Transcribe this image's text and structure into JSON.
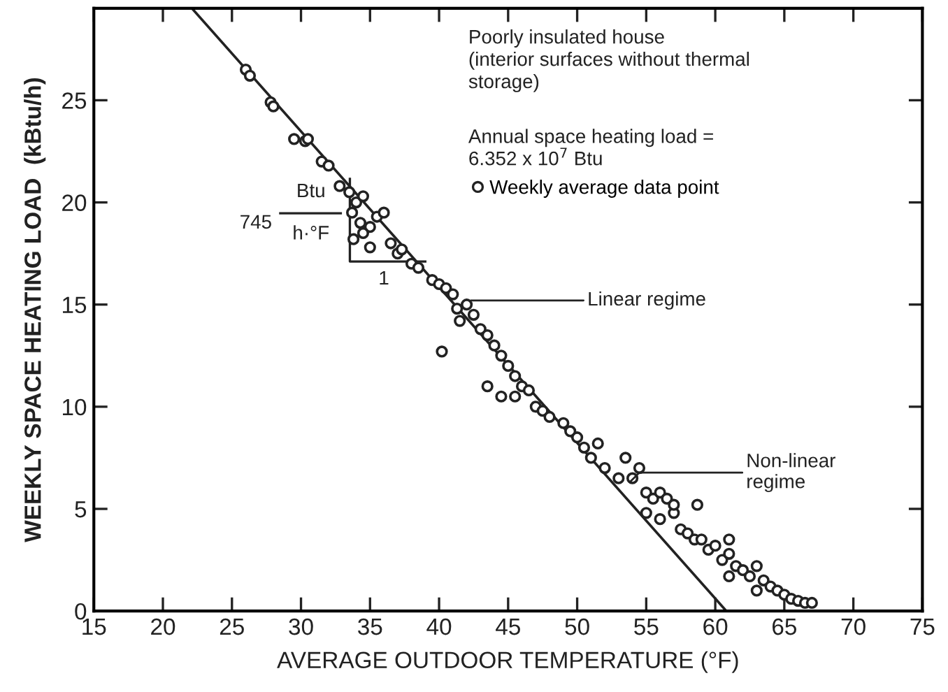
{
  "chart_data": {
    "type": "scatter",
    "xlabel": "AVERAGE OUTDOOR TEMPERATURE (°F)",
    "ylabel": "WEEKLY SPACE HEATING LOAD  (kBtu/h)",
    "xlim": [
      15,
      75
    ],
    "xticks": [
      15,
      20,
      25,
      30,
      35,
      40,
      45,
      50,
      55,
      60,
      65,
      70,
      75
    ],
    "ylim": [
      0,
      29.5
    ],
    "yticks": [
      0,
      5,
      10,
      15,
      20,
      25
    ],
    "grid": false,
    "legend": "top right",
    "marker": "circle",
    "annotations": [
      "Poorly insulated house\n(interior surfaces without thermal\nstorage)",
      "Annual space heating load =\n6.352 x 10$^{7}$ Btu",
      "745",
      "Btu",
      "h·°F",
      "1",
      {
        "text": "Linear regime",
        "x": 42.3,
        "y": 15.2
      },
      {
        "text": "Non-linear\nregime",
        "x": 53.8,
        "y": 6.3
      }
    ],
    "series": [
      {
        "name": "Weekly average data point",
        "color": "#222222",
        "x": [
          26,
          26.3,
          27.8,
          28,
          29.5,
          30.3,
          30.5,
          31.5,
          32,
          32.8,
          33.5,
          34,
          33.7,
          34.3,
          34.5,
          35,
          35.5,
          36,
          33.8,
          34.5,
          36.5,
          35,
          37,
          37.3,
          38,
          38.5,
          39.5,
          40,
          40.5,
          41,
          41.3,
          42,
          42.5,
          41.5,
          40.2,
          43,
          43.5,
          44,
          44.5,
          45,
          45.5,
          46,
          43.5,
          44.5,
          45.5,
          46.5,
          47,
          47.5,
          48,
          49,
          49.5,
          50,
          50.5,
          51,
          51.5,
          52,
          53,
          53.5,
          54,
          54.5,
          55,
          55.5,
          56,
          56.5,
          55,
          56,
          57,
          57.5,
          57,
          58,
          58.5,
          59,
          59.5,
          60,
          60.5,
          61,
          61,
          61.5,
          62,
          62.5,
          63,
          63.5,
          64,
          64.5,
          65,
          65.5,
          66,
          66.5,
          67,
          63,
          61,
          58.7
        ],
        "values": [
          26.5,
          26.2,
          24.9,
          24.7,
          23.1,
          23.0,
          23.1,
          22,
          21.8,
          20.8,
          20.5,
          20,
          19.5,
          19,
          20.3,
          18.8,
          19.3,
          19.5,
          18.2,
          18.5,
          18,
          17.8,
          17.5,
          17.7,
          17,
          16.8,
          16.2,
          16,
          15.8,
          15.5,
          14.8,
          15,
          14.5,
          14.2,
          12.7,
          13.8,
          13.5,
          13,
          12.5,
          12,
          11.5,
          11,
          11,
          10.5,
          10.5,
          10.8,
          10,
          9.8,
          9.5,
          9.2,
          8.8,
          8.5,
          8,
          7.5,
          8.2,
          7,
          6.5,
          7.5,
          6.5,
          7,
          5.8,
          5.5,
          5.8,
          5.5,
          4.8,
          4.5,
          4.8,
          4,
          5.2,
          3.8,
          3.5,
          3.5,
          3,
          3.2,
          2.5,
          2.8,
          3.5,
          2.2,
          2,
          1.7,
          2.2,
          1.5,
          1.2,
          1,
          0.8,
          0.6,
          0.5,
          0.4,
          0.4,
          1,
          1.7,
          5.2
        ]
      },
      {
        "type": "line",
        "color": "#222222",
        "marker": "none",
        "x": [
          22.1,
          60.8
        ],
        "values": [
          29.5,
          0
        ]
      }
    ]
  }
}
